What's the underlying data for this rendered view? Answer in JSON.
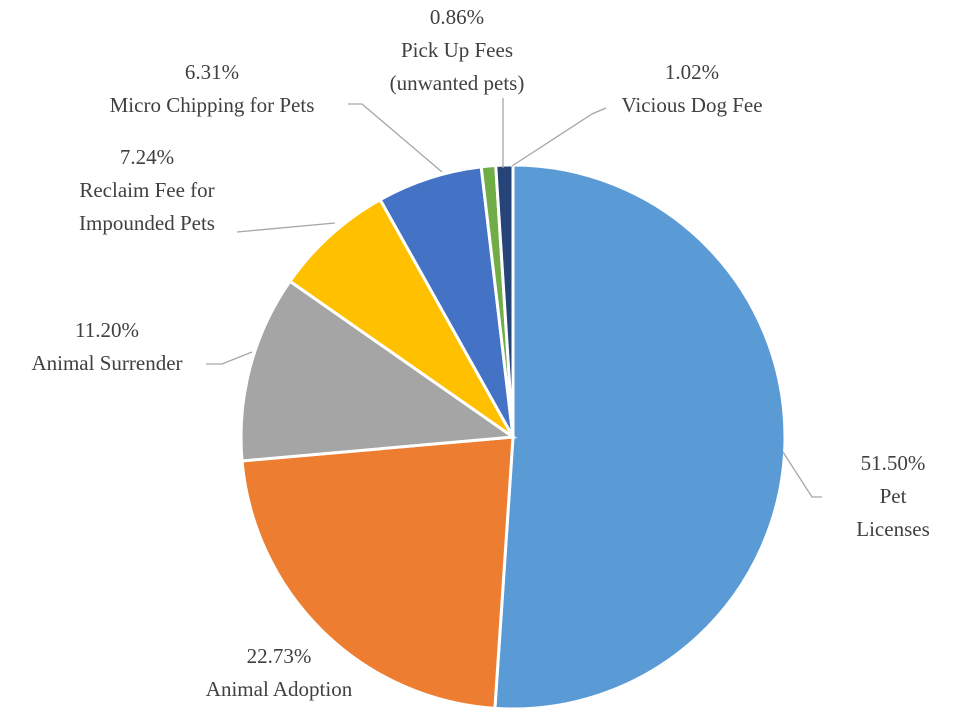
{
  "chart_data": {
    "type": "pie",
    "categories": [
      "Pet Licenses",
      "Animal Adoption",
      "Animal Surrender",
      "Reclaim Fee for\nImpounded Pets",
      "Micro Chipping for Pets",
      "Pick Up Fees\n(unwanted pets)",
      "Vicious Dog Fee"
    ],
    "values": [
      51.5,
      22.73,
      11.2,
      7.24,
      6.31,
      0.86,
      1.02
    ],
    "value_labels": [
      "51.50%",
      "22.73%",
      "11.20%",
      "7.24%",
      "6.31%",
      "0.86%",
      "1.02%"
    ],
    "colors": [
      "#5b9bd5",
      "#ed7d31",
      "#a5a5a5",
      "#ffc000",
      "#4472c4",
      "#70ad47",
      "#264478"
    ]
  }
}
